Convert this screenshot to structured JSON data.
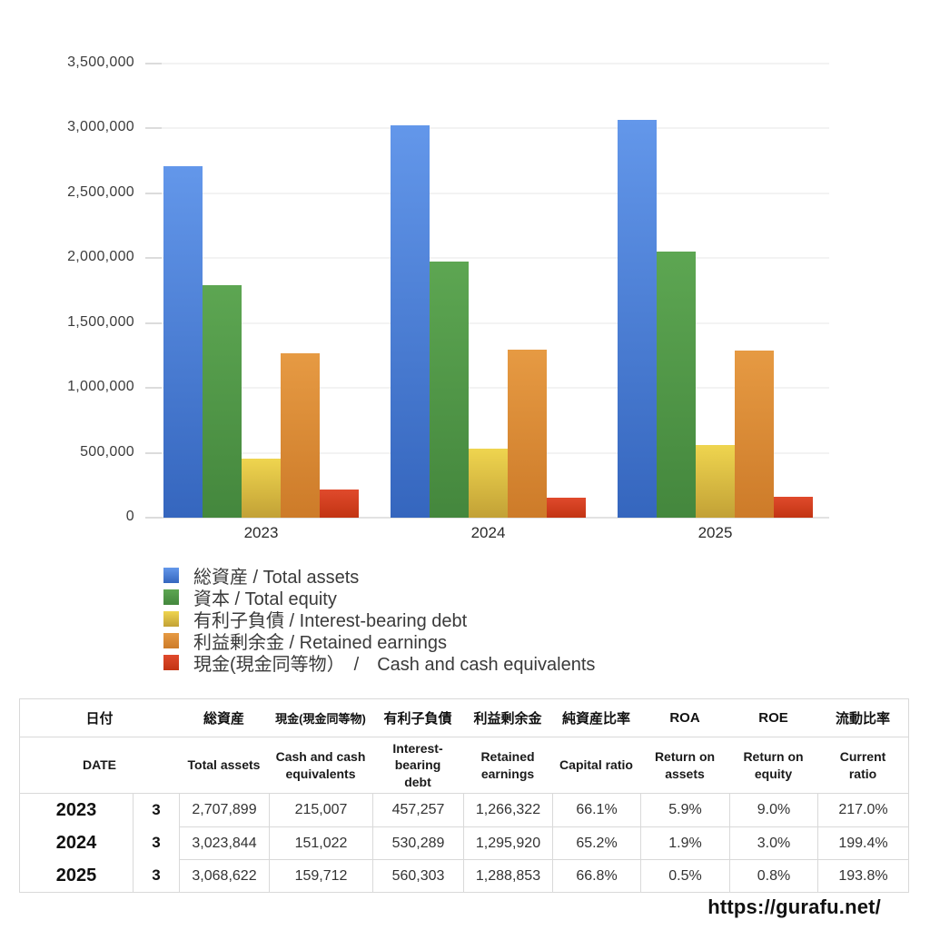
{
  "chart_data": {
    "type": "bar",
    "title": "",
    "categories": [
      "2023",
      "2024",
      "2025"
    ],
    "xlabel": "",
    "ylabel": "",
    "ylim": [
      0,
      3500000
    ],
    "ytick_step": 500000,
    "y_tick_labels": [
      "0",
      "500,000",
      "1,000,000",
      "1,500,000",
      "2,000,000",
      "2,500,000",
      "3,000,000",
      "3,500,000"
    ],
    "grid": true,
    "legend_position": "bottom-left",
    "series": [
      {
        "name": "total-assets",
        "label": "総資産 / Total assets",
        "color": "#4a80d6",
        "color_top": "#6397ea",
        "color_bottom": "#3566be",
        "values": [
          2707899,
          3023844,
          3068622
        ]
      },
      {
        "name": "total-equity",
        "label": "資本 / Total equity",
        "color": "#4f9a47",
        "color_top": "#5da652",
        "color_bottom": "#44873d",
        "values": [
          1789900,
          1971500,
          2049800
        ]
      },
      {
        "name": "interest-bearing-debt",
        "label": "有利子負債 / Interest-bearing debt",
        "color": "#e0c23e",
        "color_top": "#efd54f",
        "color_bottom": "#c2a136",
        "values": [
          457257,
          530289,
          560303
        ]
      },
      {
        "name": "retained-earnings",
        "label": "利益剰余金 / Retained earnings",
        "color": "#dd8c34",
        "color_top": "#e69a43",
        "color_bottom": "#cd7b29",
        "values": [
          1266322,
          1295920,
          1288853
        ]
      },
      {
        "name": "cash-and-cash-equivalents",
        "label": "現金(現金同等物）　/　Cash and cash equivalents",
        "color": "#d6401f",
        "color_top": "#e04a2c",
        "color_bottom": "#c23413",
        "values": [
          215007,
          151022,
          159712
        ]
      }
    ]
  },
  "table": {
    "header_ja": [
      "日付",
      "総資産",
      "現金(現金同等物)",
      "有利子負債",
      "利益剰余金",
      "純資産比率",
      "ROA",
      "ROE",
      "流動比率"
    ],
    "header_en": [
      "DATE",
      "Total assets",
      "Cash and cash\nequivalents",
      "Interest-\nbearing\ndebt",
      "Retained\nearnings",
      "Capital ratio",
      "Return on\nassets",
      "Return on\nequity",
      "Current\nratio"
    ],
    "rows": [
      [
        "2023",
        "3",
        "2,707,899",
        "215,007",
        "457,257",
        "1,266,322",
        "66.1%",
        "5.9%",
        "9.0%",
        "217.0%"
      ],
      [
        "2024",
        "3",
        "3,023,844",
        "151,022",
        "530,289",
        "1,295,920",
        "65.2%",
        "1.9%",
        "3.0%",
        "199.4%"
      ],
      [
        "2025",
        "3",
        "3,068,622",
        "159,712",
        "560,303",
        "1,288,853",
        "66.8%",
        "0.5%",
        "0.8%",
        "193.8%"
      ]
    ]
  },
  "footer": {
    "url": "https://gurafu.net/"
  }
}
